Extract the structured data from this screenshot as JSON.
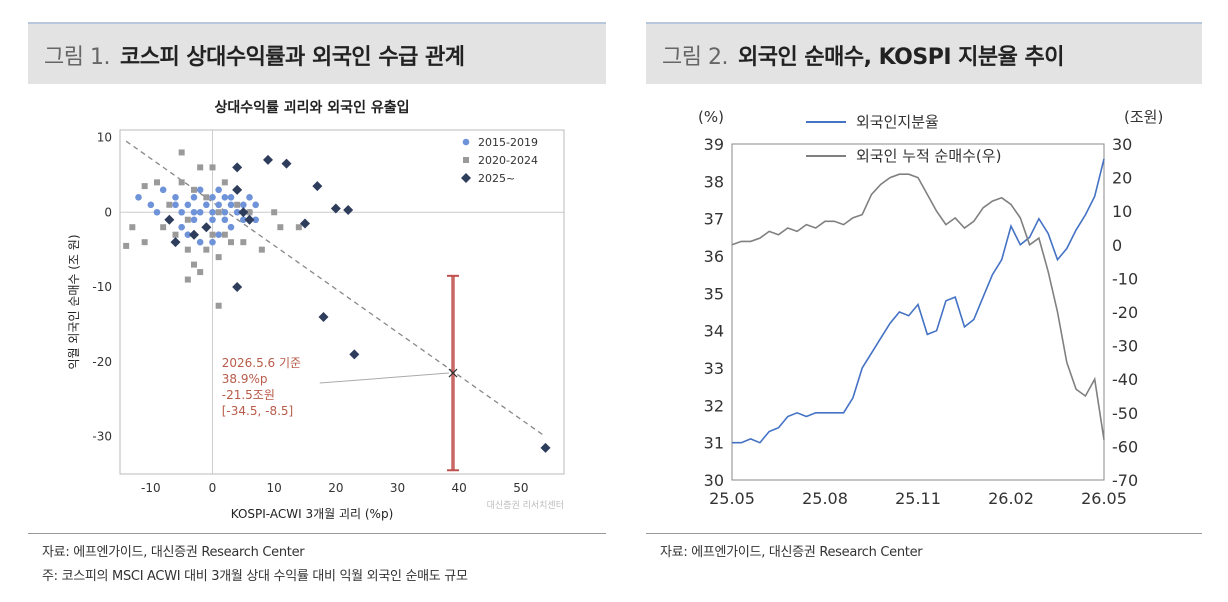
{
  "left": {
    "fig_num": "그림 1.",
    "fig_title": "코스피 상대수익률과 외국인 수급 관계",
    "source": "자료: 에프엔가이드, 대신증권 Research Center",
    "note": "주: 코스피의 MSCI ACWI 대비 3개월 상대 수익률 대비 익월 외국인 순매도 규모",
    "watermark": "대신증권 리서치센터"
  },
  "right": {
    "fig_num": "그림 2.",
    "fig_title": "외국인 순매수, KOSPI 지분율 추이",
    "source": "자료: 에프엔가이드, 대신증권 Research Center"
  },
  "chart_data": [
    {
      "type": "scatter",
      "title": "상대수익률 괴리와 외국인 유출입",
      "xlabel": "KOSPI-ACWI 3개월 괴리 (%p)",
      "ylabel": "익월 외국인 순매수 (조 원)",
      "xlim": [
        -15,
        57
      ],
      "ylim": [
        -35,
        11
      ],
      "xticks": [
        -10,
        0,
        10,
        20,
        30,
        40,
        50
      ],
      "yticks": [
        10,
        0,
        -10,
        -20,
        -30
      ],
      "legend_position": "top-right",
      "colors": {
        "s2015": "#6f93d8",
        "s2020": "#9a9a9a",
        "s2025": "#2e3d5c",
        "range": "#c0504d",
        "annotation": "#b85b4a"
      },
      "series": [
        {
          "name": "2015-2019",
          "marker": "circle",
          "points": [
            [
              -12,
              2
            ],
            [
              -10,
              1
            ],
            [
              -9,
              0
            ],
            [
              -8,
              3
            ],
            [
              -7,
              -1
            ],
            [
              -6,
              2
            ],
            [
              -5,
              0
            ],
            [
              -5,
              -2
            ],
            [
              -4,
              1
            ],
            [
              -4,
              -3
            ],
            [
              -3,
              2
            ],
            [
              -3,
              -1
            ],
            [
              -2,
              0
            ],
            [
              -2,
              3
            ],
            [
              -1,
              1
            ],
            [
              -1,
              -2
            ],
            [
              0,
              2
            ],
            [
              0,
              -1
            ],
            [
              0,
              0
            ],
            [
              1,
              1
            ],
            [
              1,
              -3
            ],
            [
              2,
              2
            ],
            [
              2,
              0
            ],
            [
              2,
              -1
            ],
            [
              3,
              1
            ],
            [
              3,
              -2
            ],
            [
              4,
              3
            ],
            [
              4,
              0
            ],
            [
              5,
              1
            ],
            [
              5,
              -1
            ],
            [
              6,
              2
            ],
            [
              6,
              0
            ],
            [
              7,
              1
            ],
            [
              7,
              -1
            ],
            [
              -6,
              1
            ],
            [
              -3,
              0
            ],
            [
              1,
              3
            ],
            [
              3,
              2
            ],
            [
              -2,
              -4
            ],
            [
              0,
              -4
            ]
          ]
        },
        {
          "name": "2020-2024",
          "marker": "square",
          "points": [
            [
              -14,
              -4.5
            ],
            [
              -13,
              -2
            ],
            [
              -11,
              3.5
            ],
            [
              -11,
              -4
            ],
            [
              -9,
              4
            ],
            [
              -8,
              -2
            ],
            [
              -7,
              1
            ],
            [
              -6,
              -3
            ],
            [
              -5,
              8
            ],
            [
              -5,
              4
            ],
            [
              -4,
              -1
            ],
            [
              -4,
              -5
            ],
            [
              -3,
              3
            ],
            [
              -3,
              -7
            ],
            [
              -2,
              6
            ],
            [
              -2,
              -8
            ],
            [
              -1,
              2
            ],
            [
              -1,
              -5
            ],
            [
              0,
              6
            ],
            [
              0,
              -3
            ],
            [
              1,
              0
            ],
            [
              1,
              -6
            ],
            [
              2,
              4
            ],
            [
              2,
              -3
            ],
            [
              3,
              -4
            ],
            [
              4,
              1
            ],
            [
              5,
              -4
            ],
            [
              6,
              0
            ],
            [
              8,
              -5
            ],
            [
              10,
              0
            ],
            [
              11,
              -2
            ],
            [
              14,
              -2
            ],
            [
              1,
              -12.5
            ],
            [
              -4,
              -9
            ]
          ]
        },
        {
          "name": "2025~",
          "marker": "diamond",
          "points": [
            [
              -7,
              -1
            ],
            [
              -6,
              -4
            ],
            [
              -3,
              -3
            ],
            [
              -1,
              -2
            ],
            [
              4,
              6
            ],
            [
              4,
              3
            ],
            [
              5,
              0
            ],
            [
              6,
              -1
            ],
            [
              9,
              7
            ],
            [
              12,
              6.5
            ],
            [
              15,
              -1.5
            ],
            [
              17,
              3.5
            ],
            [
              20,
              0.5
            ],
            [
              22,
              0.3
            ],
            [
              4,
              -10
            ],
            [
              18,
              -14
            ],
            [
              23,
              -19
            ],
            [
              54,
              -31.5
            ]
          ]
        }
      ],
      "trendline": [
        [
          -14,
          9.5
        ],
        [
          54,
          -30
        ]
      ],
      "marked_point": [
        39,
        -21.5
      ],
      "error_range": [
        -34.5,
        -8.5
      ],
      "annotation": [
        "2026.5.6 기준",
        "38.9%p",
        "-21.5조원",
        "[-34.5, -8.5]"
      ]
    },
    {
      "type": "line",
      "xlim": [
        0,
        12
      ],
      "x_tick_values": [
        0,
        3,
        6,
        9,
        12
      ],
      "x_tick_labels": [
        "25.05",
        "25.08",
        "25.11",
        "26.02",
        "26.05"
      ],
      "left_unit": "(%)",
      "right_unit": "(조원)",
      "ylim_left": [
        30,
        39
      ],
      "ylim_right": [
        -70,
        30
      ],
      "yticks_left": [
        30,
        31,
        32,
        33,
        34,
        35,
        36,
        37,
        38,
        39
      ],
      "yticks_right": [
        30,
        20,
        10,
        0,
        -10,
        -20,
        -30,
        -40,
        -50,
        -60,
        -70
      ],
      "legend_position": "top-left",
      "series": [
        {
          "name": "외국인지분율",
          "axis": "left",
          "color": "#4472c4",
          "x": [
            0,
            0.3,
            0.6,
            0.9,
            1.2,
            1.5,
            1.8,
            2.1,
            2.4,
            2.7,
            3.0,
            3.3,
            3.6,
            3.9,
            4.2,
            4.5,
            4.8,
            5.1,
            5.4,
            5.7,
            6.0,
            6.3,
            6.6,
            6.9,
            7.2,
            7.5,
            7.8,
            8.1,
            8.4,
            8.7,
            9.0,
            9.3,
            9.6,
            9.9,
            10.2,
            10.5,
            10.8,
            11.1,
            11.4,
            11.7,
            12.0
          ],
          "y": [
            31.0,
            31.0,
            31.1,
            31.0,
            31.3,
            31.4,
            31.7,
            31.8,
            31.7,
            31.8,
            31.8,
            31.8,
            31.8,
            32.2,
            33.0,
            33.4,
            33.8,
            34.2,
            34.5,
            34.4,
            34.7,
            33.9,
            34.0,
            34.8,
            34.9,
            34.1,
            34.3,
            34.9,
            35.5,
            35.9,
            36.8,
            36.3,
            36.5,
            37.0,
            36.6,
            35.9,
            36.2,
            36.7,
            37.1,
            37.6,
            38.6
          ]
        },
        {
          "name": "외국인 누적 순매수(우)",
          "axis": "right",
          "color": "#808080",
          "x": [
            0,
            0.3,
            0.6,
            0.9,
            1.2,
            1.5,
            1.8,
            2.1,
            2.4,
            2.7,
            3.0,
            3.3,
            3.6,
            3.9,
            4.2,
            4.5,
            4.8,
            5.1,
            5.4,
            5.7,
            6.0,
            6.3,
            6.6,
            6.9,
            7.2,
            7.5,
            7.8,
            8.1,
            8.4,
            8.7,
            9.0,
            9.3,
            9.6,
            9.9,
            10.2,
            10.5,
            10.8,
            11.1,
            11.4,
            11.7,
            12.0
          ],
          "y": [
            0,
            1,
            1,
            2,
            4,
            3,
            5,
            4,
            6,
            5,
            7,
            7,
            6,
            8,
            9,
            15,
            18,
            20,
            21,
            21,
            20,
            15,
            10,
            6,
            8,
            5,
            7,
            11,
            13,
            14,
            12,
            8,
            0,
            2,
            -8,
            -20,
            -35,
            -43,
            -45,
            -40,
            -58
          ]
        }
      ]
    }
  ]
}
